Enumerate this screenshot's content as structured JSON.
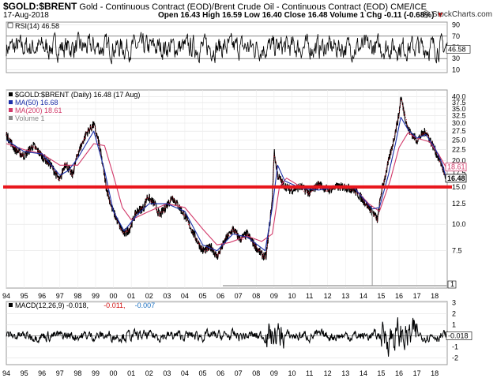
{
  "header": {
    "symbol": "$GOLD:$BRENT",
    "description": "Gold - Continuous Contract (EOD)/Brent Crude Oil - Continuous Contract (EOD)",
    "exchange": "CME/ICE",
    "date": "17-Aug-2018",
    "open_label": "Open",
    "open": "16.43",
    "high_label": "High",
    "high": "16.59",
    "low_label": "Low",
    "low": "16.40",
    "close_label": "Close",
    "close": "16.48",
    "volume_label": "Volume",
    "volume": "1",
    "chg_label": "Chg",
    "chg": "-0.11 (-0.68%)",
    "chg_marker": "▼",
    "source": "@ StockCharts.com"
  },
  "chart_data": [
    {
      "type": "line",
      "panel": "rsi",
      "legend": "RSI(14) 46.58",
      "ylim": [
        5,
        95
      ],
      "ticks": [
        10,
        30,
        50,
        70,
        90
      ],
      "last_value": "46.58",
      "reference_lines": [
        30,
        70
      ]
    },
    {
      "type": "line",
      "panel": "price",
      "legend": [
        {
          "name": "$GOLD:$BRENT (Daily) 16.48 (17 Aug)",
          "color": "#000000"
        },
        {
          "name": "MA(50) 16.68",
          "color": "#1a2ea8"
        },
        {
          "name": "MA(200) 18.61",
          "color": "#d23a6a"
        },
        {
          "name": "Volume 1",
          "color": "#888888"
        }
      ],
      "yscale": "log",
      "ylim": [
        5.0,
        43.0
      ],
      "y_ticks": [
        7.5,
        10.0,
        12.5,
        15.0,
        17.5,
        20.0,
        22.5,
        25.0,
        27.5,
        30.0,
        32.5,
        35.0,
        37.5,
        40.0
      ],
      "x_ticks": [
        "94",
        "95",
        "96",
        "97",
        "98",
        "99",
        "00",
        "01",
        "02",
        "03",
        "04",
        "05",
        "06",
        "07",
        "08",
        "09",
        "10",
        "11",
        "12",
        "13",
        "14",
        "15",
        "16",
        "17",
        "18"
      ],
      "x_range": [
        1994.0,
        2018.7
      ],
      "series": [
        {
          "role": "price",
          "x": [
            1994.0,
            1994.5,
            1995.0,
            1995.5,
            1996.0,
            1996.5,
            1997.0,
            1997.3,
            1997.7,
            1998.0,
            1998.5,
            1998.9,
            1999.2,
            1999.6,
            1999.9,
            2000.3,
            2000.6,
            2000.9,
            2001.3,
            2001.7,
            2001.9,
            2002.3,
            2002.6,
            2002.9,
            2003.3,
            2003.7,
            2004.0,
            2004.5,
            2005.0,
            2005.5,
            2005.8,
            2006.3,
            2006.7,
            2007.1,
            2007.5,
            2007.9,
            2008.3,
            2008.55,
            2008.9,
            2009.0,
            2009.2,
            2009.5,
            2009.9,
            2010.5,
            2011.0,
            2011.5,
            2012.0,
            2012.5,
            2013.0,
            2013.5,
            2014.0,
            2014.5,
            2014.8,
            2015.0,
            2015.3,
            2015.7,
            2016.0,
            2016.1,
            2016.5,
            2017.0,
            2017.5,
            2018.0,
            2018.4,
            2018.63
          ],
          "values": [
            26.5,
            22.5,
            21.0,
            23.5,
            21.0,
            19.0,
            16.0,
            19.5,
            17.0,
            21.5,
            27.0,
            29.5,
            24.0,
            15.0,
            12.0,
            10.0,
            9.0,
            9.5,
            11.5,
            12.0,
            13.5,
            12.5,
            11.0,
            12.0,
            13.5,
            12.0,
            11.0,
            9.0,
            7.5,
            7.8,
            7.0,
            8.5,
            9.5,
            8.5,
            9.0,
            8.0,
            7.2,
            7.0,
            13.0,
            22.0,
            17.0,
            15.5,
            14.5,
            15.0,
            14.0,
            15.5,
            14.5,
            15.0,
            15.0,
            14.5,
            13.0,
            11.5,
            10.5,
            14.0,
            18.0,
            25.0,
            33.0,
            40.0,
            28.0,
            25.0,
            27.5,
            22.5,
            19.0,
            16.48
          ]
        },
        {
          "role": "ma200",
          "x": [
            1994.0,
            1995.0,
            1996.0,
            1997.0,
            1998.0,
            1998.9,
            1999.5,
            2000.0,
            2000.5,
            2001.0,
            2002.0,
            2003.0,
            2004.0,
            2005.0,
            2005.8,
            2006.5,
            2007.5,
            2008.3,
            2008.9,
            2009.3,
            2009.7,
            2010.5,
            2011.5,
            2012.5,
            2013.5,
            2014.3,
            2014.9,
            2015.5,
            2016.0,
            2016.5,
            2017.0,
            2017.7,
            2018.2,
            2018.63
          ],
          "values": [
            24.0,
            22.5,
            21.5,
            19.0,
            19.0,
            24.0,
            23.5,
            17.0,
            12.0,
            10.5,
            11.5,
            12.5,
            12.0,
            9.5,
            8.0,
            8.2,
            8.8,
            8.3,
            9.0,
            15.0,
            16.5,
            15.0,
            14.8,
            15.0,
            14.8,
            12.5,
            11.5,
            16.0,
            23.0,
            27.0,
            25.5,
            24.5,
            21.5,
            18.61
          ]
        },
        {
          "role": "ma50",
          "x": [
            1994.0,
            1995.0,
            1996.0,
            1997.0,
            1997.5,
            1998.0,
            1998.9,
            1999.5,
            2000.0,
            2000.6,
            2001.3,
            2002.0,
            2003.0,
            2004.0,
            2005.0,
            2005.8,
            2006.7,
            2007.5,
            2008.5,
            2008.9,
            2009.2,
            2009.6,
            2010.5,
            2011.5,
            2012.5,
            2013.5,
            2014.5,
            2014.9,
            2015.4,
            2015.8,
            2016.1,
            2016.5,
            2017.0,
            2017.5,
            2018.0,
            2018.4,
            2018.63
          ],
          "values": [
            25.0,
            22.0,
            21.5,
            17.0,
            18.0,
            20.5,
            27.5,
            18.0,
            11.5,
            9.3,
            11.0,
            12.5,
            12.5,
            11.5,
            8.0,
            7.5,
            9.0,
            8.7,
            7.5,
            12.0,
            19.0,
            16.0,
            14.8,
            14.5,
            15.0,
            14.8,
            11.8,
            12.0,
            17.0,
            24.0,
            32.0,
            28.0,
            25.5,
            26.5,
            23.0,
            19.5,
            16.68
          ]
        }
      ],
      "overlay_values": [
        {
          "label": "18.61",
          "value": 18.61,
          "color": "#d23a6a"
        },
        {
          "label": "16.48",
          "value": 16.48,
          "color": "#000000"
        }
      ],
      "horizontal_line": {
        "value": 15.0,
        "color": "#e8161c"
      },
      "volume_marker": "1"
    },
    {
      "type": "line",
      "panel": "macd",
      "legend": [
        {
          "name": "MACD(12,26,9)",
          "value": "-0.018",
          "color": "#000000"
        },
        {
          "name": "",
          "value": "-0.011",
          "color": "#d01010"
        },
        {
          "name": "",
          "value": "-0.007",
          "color": "#1a6fc0"
        }
      ],
      "ylim": [
        -2.6,
        3.1
      ],
      "ticks": [
        -2,
        -1,
        0,
        1,
        2,
        3
      ],
      "last_value": "-0.018",
      "x_ticks": [
        "94",
        "95",
        "96",
        "97",
        "98",
        "99",
        "00",
        "01",
        "02",
        "03",
        "04",
        "05",
        "06",
        "07",
        "08",
        "09",
        "10",
        "11",
        "12",
        "13",
        "14",
        "15",
        "16",
        "17",
        "18"
      ]
    }
  ]
}
